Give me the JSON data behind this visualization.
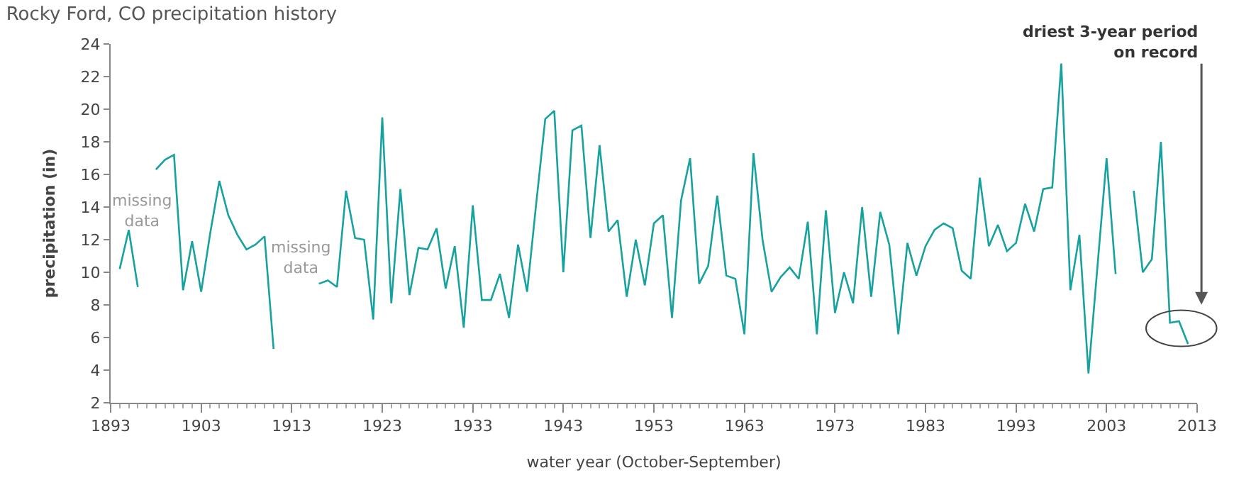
{
  "chart_data": {
    "type": "line",
    "title": "Rocky Ford, CO precipitation history",
    "xlabel": "water year (October-September)",
    "ylabel": "precipitation (in)",
    "x": [
      1894,
      1895,
      1896,
      1897,
      1898,
      1899,
      1900,
      1901,
      1902,
      1903,
      1904,
      1905,
      1906,
      1907,
      1908,
      1909,
      1910,
      1911,
      1912,
      1913,
      1914,
      1915,
      1916,
      1917,
      1918,
      1919,
      1920,
      1921,
      1922,
      1923,
      1924,
      1925,
      1926,
      1927,
      1928,
      1929,
      1930,
      1931,
      1932,
      1933,
      1934,
      1935,
      1936,
      1937,
      1938,
      1939,
      1940,
      1941,
      1942,
      1943,
      1944,
      1945,
      1946,
      1947,
      1948,
      1949,
      1950,
      1951,
      1952,
      1953,
      1954,
      1955,
      1956,
      1957,
      1958,
      1959,
      1960,
      1961,
      1962,
      1963,
      1964,
      1965,
      1966,
      1967,
      1968,
      1969,
      1970,
      1971,
      1972,
      1973,
      1974,
      1975,
      1976,
      1977,
      1978,
      1979,
      1980,
      1981,
      1982,
      1983,
      1984,
      1985,
      1986,
      1987,
      1988,
      1989,
      1990,
      1991,
      1992,
      1993,
      1994,
      1995,
      1996,
      1997,
      1998,
      1999,
      2000,
      2001,
      2002,
      2003,
      2004,
      2005,
      2006,
      2007,
      2008,
      2009,
      2010,
      2011,
      2012
    ],
    "series": [
      {
        "color": "#17a2a0",
        "values": [
          10.2,
          12.6,
          9.1,
          null,
          16.3,
          16.9,
          17.2,
          8.9,
          11.9,
          8.8,
          12.4,
          15.6,
          13.5,
          12.3,
          11.4,
          11.7,
          12.2,
          5.3,
          null,
          null,
          null,
          null,
          9.3,
          9.5,
          9.1,
          15.0,
          12.1,
          12.0,
          7.1,
          19.5,
          8.1,
          15.1,
          8.6,
          11.5,
          11.4,
          12.7,
          9.0,
          11.6,
          6.6,
          14.1,
          8.3,
          8.3,
          9.9,
          7.2,
          11.7,
          8.8,
          14.2,
          19.4,
          19.9,
          10.0,
          18.7,
          19.0,
          12.1,
          17.8,
          12.5,
          13.2,
          8.5,
          12.0,
          9.2,
          13.0,
          13.5,
          7.2,
          14.4,
          17.0,
          9.3,
          10.4,
          14.7,
          9.8,
          9.6,
          6.2,
          17.3,
          12.0,
          8.8,
          9.7,
          10.3,
          9.6,
          13.1,
          6.2,
          13.8,
          7.5,
          10.0,
          8.1,
          14.0,
          8.5,
          13.7,
          11.7,
          6.2,
          11.8,
          9.8,
          11.6,
          12.6,
          13.0,
          12.7,
          10.1,
          9.6,
          15.8,
          11.6,
          12.9,
          11.3,
          11.8,
          14.2,
          12.5,
          15.1,
          15.2,
          22.8,
          8.9,
          12.3,
          3.8,
          10.4,
          17.0,
          9.9,
          null,
          15.0,
          10.0,
          10.8,
          18.0,
          6.9,
          7.0,
          5.6
        ]
      }
    ],
    "xlim": [
      1893,
      2013
    ],
    "xticks": [
      1893,
      1903,
      1913,
      1923,
      1933,
      1943,
      1953,
      1963,
      1973,
      1983,
      1993,
      2003,
      2013
    ],
    "ylim": [
      2,
      24
    ],
    "yticks": [
      2,
      4,
      6,
      8,
      10,
      12,
      14,
      16,
      18,
      20,
      22,
      24
    ],
    "marker": "none",
    "line_style": "solid",
    "annotations": [
      "missing data",
      "missing data",
      "driest 3-year period on record"
    ]
  }
}
